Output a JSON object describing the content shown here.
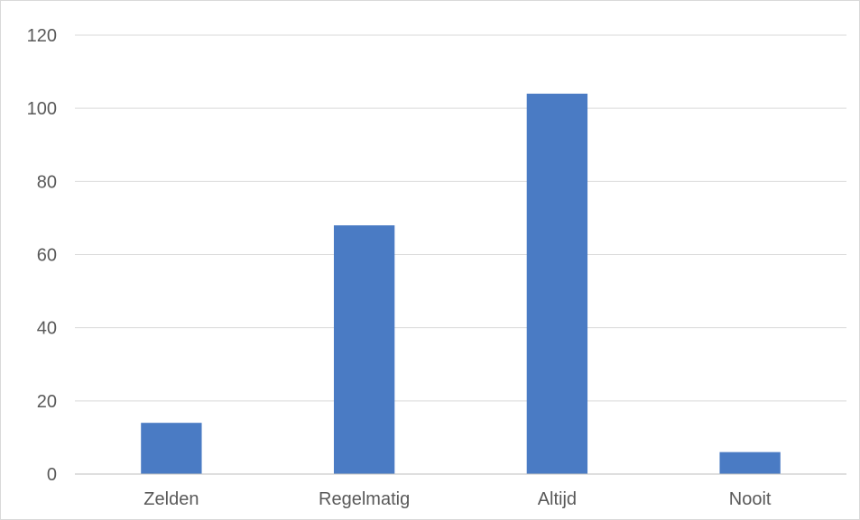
{
  "chart_data": {
    "type": "bar",
    "title": "",
    "xlabel": "",
    "ylabel": "",
    "categories": [
      "Zelden",
      "Regelmatig",
      "Altijd",
      "Nooit"
    ],
    "values": [
      14,
      68,
      104,
      6
    ],
    "ylim": [
      0,
      120
    ],
    "yticks": [
      0,
      20,
      40,
      60,
      80,
      100,
      120
    ],
    "grid": true,
    "legend": "none",
    "bar_color": "#4a7bc4",
    "grid_color": "#d9d9d9",
    "tick_label_color": "#595959"
  }
}
